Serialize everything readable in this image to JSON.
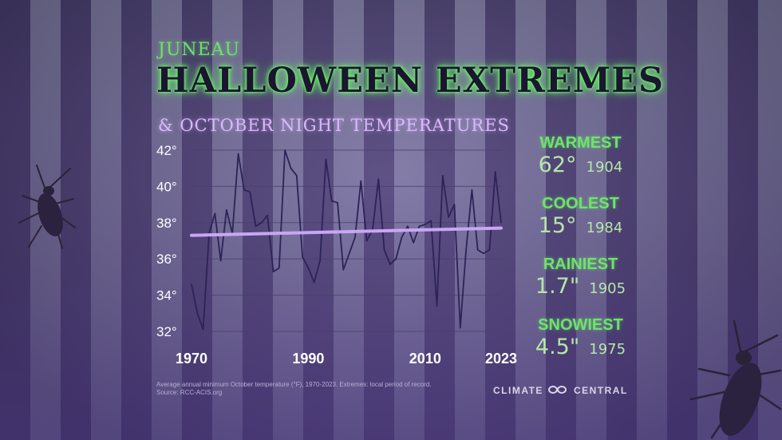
{
  "header": {
    "city": "JUNEAU",
    "title": "HALLOWEEN EXTREMES",
    "subtitle": "& OCTOBER NIGHT TEMPERATURES"
  },
  "stats": [
    {
      "label": "WARMEST",
      "value": "62°",
      "year": "1904"
    },
    {
      "label": "COOLEST",
      "value": "15°",
      "year": "1984"
    },
    {
      "label": "RAINIEST",
      "value": "1.7\"",
      "year": "1905"
    },
    {
      "label": "SNOWIEST",
      "value": "4.5\"",
      "year": "1975"
    }
  ],
  "footnote": {
    "line1": "Average annual minimum October temperature (°F), 1970-2023. Extremes: local period of record.",
    "line2": "Source: RCC-ACIS.org"
  },
  "brand": "CLIMATE  CENTRAL",
  "colors": {
    "series": "#2d2356",
    "trend": "#c9a6f4",
    "label_green": "#6fe36a",
    "subtitle_purple": "#d9b8ff"
  },
  "chart_data": {
    "type": "line",
    "title": "",
    "xlabel": "",
    "ylabel": "",
    "xlim": [
      1970,
      2023
    ],
    "ylim": [
      32,
      42
    ],
    "x_ticks": [
      1970,
      1990,
      2010,
      2023
    ],
    "y_ticks": [
      32,
      34,
      36,
      38,
      40,
      42
    ],
    "y_tick_labels": [
      "32°",
      "34°",
      "36°",
      "38°",
      "40°",
      "42°"
    ],
    "grid": true,
    "series": [
      {
        "values": [
          {
            "x": 1970,
            "y": 34.6
          },
          {
            "x": 1971,
            "y": 33.0
          },
          {
            "x": 1972,
            "y": 32.1
          },
          {
            "x": 1973,
            "y": 37.4
          },
          {
            "x": 1974,
            "y": 38.5
          },
          {
            "x": 1975,
            "y": 35.9
          },
          {
            "x": 1976,
            "y": 38.7
          },
          {
            "x": 1977,
            "y": 37.4
          },
          {
            "x": 1978,
            "y": 41.8
          },
          {
            "x": 1979,
            "y": 39.8
          },
          {
            "x": 1980,
            "y": 39.7
          },
          {
            "x": 1981,
            "y": 37.8
          },
          {
            "x": 1982,
            "y": 38.0
          },
          {
            "x": 1983,
            "y": 38.4
          },
          {
            "x": 1984,
            "y": 35.3
          },
          {
            "x": 1985,
            "y": 35.5
          },
          {
            "x": 1986,
            "y": 42.0
          },
          {
            "x": 1987,
            "y": 41.0
          },
          {
            "x": 1988,
            "y": 40.6
          },
          {
            "x": 1989,
            "y": 36.1
          },
          {
            "x": 1990,
            "y": 35.5
          },
          {
            "x": 1991,
            "y": 34.7
          },
          {
            "x": 1992,
            "y": 35.9
          },
          {
            "x": 1993,
            "y": 41.5
          },
          {
            "x": 1994,
            "y": 39.2
          },
          {
            "x": 1995,
            "y": 39.1
          },
          {
            "x": 1996,
            "y": 35.4
          },
          {
            "x": 1997,
            "y": 36.3
          },
          {
            "x": 1998,
            "y": 37.2
          },
          {
            "x": 1999,
            "y": 40.3
          },
          {
            "x": 2000,
            "y": 37.0
          },
          {
            "x": 2001,
            "y": 37.6
          },
          {
            "x": 2002,
            "y": 40.4
          },
          {
            "x": 2003,
            "y": 36.5
          },
          {
            "x": 2004,
            "y": 35.7
          },
          {
            "x": 2005,
            "y": 36.0
          },
          {
            "x": 2006,
            "y": 37.2
          },
          {
            "x": 2007,
            "y": 37.8
          },
          {
            "x": 2008,
            "y": 36.9
          },
          {
            "x": 2009,
            "y": 37.8
          },
          {
            "x": 2010,
            "y": 37.9
          },
          {
            "x": 2011,
            "y": 38.1
          },
          {
            "x": 2012,
            "y": 33.4
          },
          {
            "x": 2013,
            "y": 40.6
          },
          {
            "x": 2014,
            "y": 38.3
          },
          {
            "x": 2015,
            "y": 39.0
          },
          {
            "x": 2016,
            "y": 32.2
          },
          {
            "x": 2017,
            "y": 36.5
          },
          {
            "x": 2018,
            "y": 39.8
          },
          {
            "x": 2019,
            "y": 36.5
          },
          {
            "x": 2020,
            "y": 36.3
          },
          {
            "x": 2021,
            "y": 36.5
          },
          {
            "x": 2022,
            "y": 40.8
          },
          {
            "x": 2023,
            "y": 38.0
          }
        ]
      }
    ],
    "trend": {
      "start": {
        "x": 1970,
        "y": 37.3
      },
      "end": {
        "x": 2023,
        "y": 37.7
      }
    }
  }
}
